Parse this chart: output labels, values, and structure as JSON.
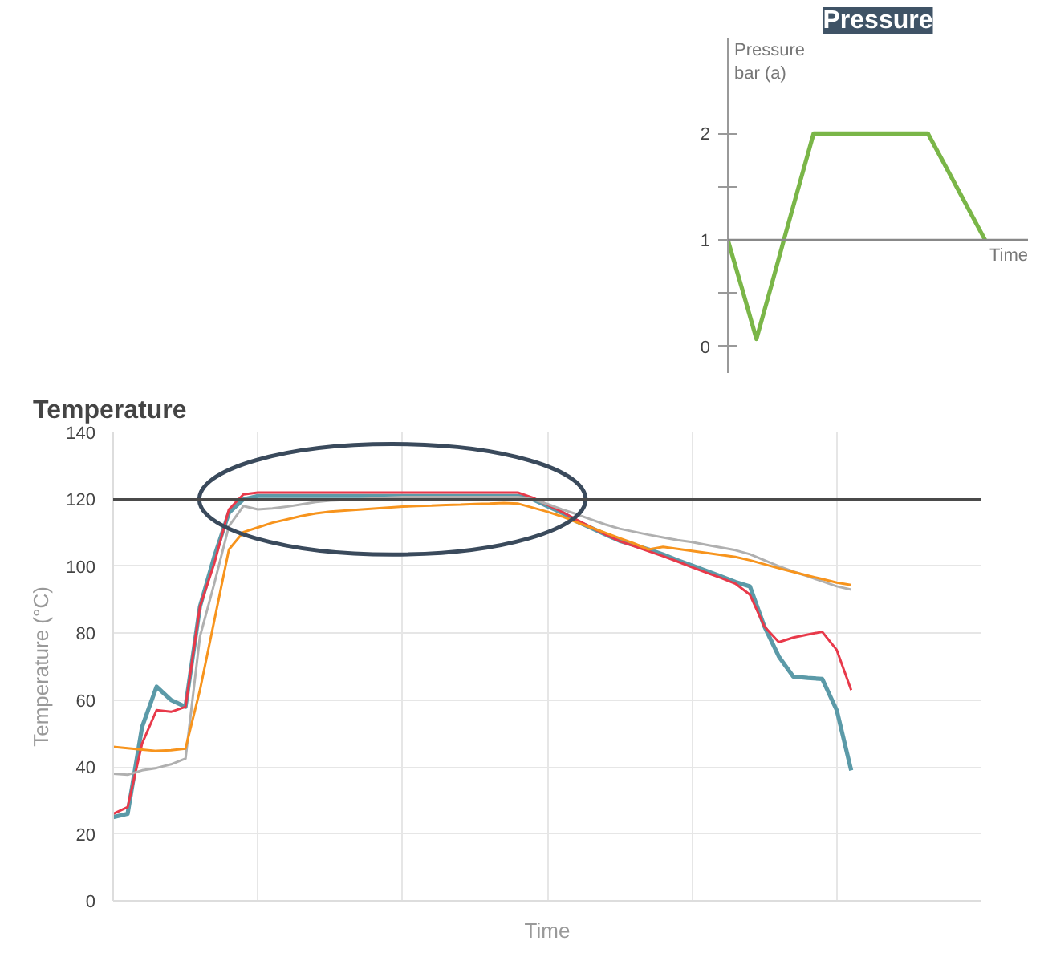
{
  "chart_data": [
    {
      "type": "line",
      "title": "Pressure",
      "xlabel": "Time",
      "ylabel": "Pressure\nbar (a)",
      "categories": [
        null,
        null,
        null,
        null,
        null,
        null,
        null,
        null,
        null,
        null,
        null,
        null,
        null,
        null,
        null,
        null,
        null,
        null,
        null
      ],
      "ylim": [
        -0.25,
        2.9
      ],
      "yticks": [
        0,
        {
          "value": 0.5,
          "label": null
        },
        1,
        {
          "value": 1.5,
          "label": null
        },
        2
      ],
      "grid": false,
      "ref_lines": [
        {
          "axis": "y",
          "value": 1,
          "color": "#888888"
        }
      ],
      "series": [
        {
          "color": "#7ab648",
          "values": [
            1,
            0.54,
            0.07,
            0.55,
            1.04,
            1.52,
            2,
            2,
            2,
            2,
            2,
            2,
            2,
            2,
            2,
            1.75,
            1.5,
            1.25,
            1
          ]
        }
      ]
    },
    {
      "type": "line",
      "title": "Temperature",
      "xlabel": "Time",
      "ylabel": "Temperature (°C)",
      "categories": [
        null,
        null,
        null,
        null,
        null,
        null,
        null,
        null,
        null,
        null,
        null,
        null,
        null,
        null,
        null,
        null,
        null,
        null,
        null,
        null,
        null,
        null,
        null,
        null,
        null,
        null,
        null,
        null,
        null,
        null,
        null,
        null,
        null,
        null,
        null,
        null,
        null,
        null,
        null,
        null,
        null,
        null,
        null,
        null,
        null,
        null,
        null,
        null,
        null,
        null,
        null,
        null,
        null,
        null,
        null,
        null,
        null,
        null,
        null,
        null,
        null
      ],
      "ylim": [
        0,
        140
      ],
      "yticks": [
        0,
        20,
        40,
        60,
        80,
        100,
        120,
        140
      ],
      "grid": true,
      "ref_lines": [
        {
          "axis": "y",
          "value": 120,
          "color": "#4a4a4a"
        }
      ],
      "series": [
        {
          "color": "#5b9aa8",
          "values": [
            25,
            26,
            52,
            64,
            60,
            58,
            88,
            103,
            116,
            120,
            121,
            121,
            121,
            121,
            121,
            121,
            121,
            121,
            121,
            121,
            121,
            121,
            121,
            121,
            121,
            121,
            121,
            121,
            121,
            120,
            118,
            116,
            113.5,
            111.5,
            109.5,
            107.6,
            106.3,
            105,
            103.5,
            101.8,
            100.2,
            98.6,
            97,
            95.3,
            94,
            82,
            73,
            67,
            66.6,
            66.3,
            57,
            39,
            null,
            null,
            null,
            null,
            null,
            null,
            null,
            null,
            null
          ]
        },
        {
          "color": "#e8394a",
          "values": [
            26,
            28,
            47,
            57,
            56.5,
            58,
            88,
            101,
            117,
            121.5,
            122,
            122,
            122,
            122,
            122,
            122,
            122,
            122,
            122,
            122,
            122,
            122,
            122,
            122,
            122,
            122,
            122,
            122,
            122,
            120.5,
            118.4,
            116.3,
            114,
            111.7,
            109.5,
            107.5,
            106,
            104.5,
            103,
            101.4,
            99.7,
            98.1,
            96.5,
            94.8,
            91.5,
            82,
            77.3,
            78.7,
            79.6,
            80.4,
            75,
            63,
            null,
            null,
            null,
            null,
            null,
            null,
            null,
            null,
            null
          ]
        },
        {
          "color": "#b0b0b0",
          "values": [
            38,
            37.7,
            39,
            39.7,
            40.8,
            42.5,
            79,
            95,
            112,
            118,
            117,
            117.3,
            117.8,
            118.5,
            119.2,
            119.6,
            119.8,
            120,
            120.3,
            120.5,
            120.7,
            120.7,
            120.7,
            120.7,
            120.7,
            120.7,
            120.7,
            120.7,
            120.7,
            120,
            118.6,
            117,
            115.6,
            114,
            112.5,
            111.2,
            110.3,
            109.4,
            108.6,
            107.8,
            107.2,
            106.4,
            105.6,
            104.8,
            103.6,
            101.8,
            100,
            98.4,
            97,
            95.5,
            94,
            93,
            null,
            null,
            null,
            null,
            null,
            null,
            null,
            null,
            null
          ]
        },
        {
          "color": "#f7941d",
          "values": [
            46,
            45.6,
            45.2,
            44.8,
            45,
            45.5,
            63,
            84,
            105,
            110.2,
            111.6,
            113,
            114,
            115,
            115.8,
            116.3,
            116.6,
            116.9,
            117.2,
            117.5,
            117.8,
            118,
            118.1,
            118.3,
            118.4,
            118.6,
            118.7,
            118.9,
            118.7,
            117.5,
            116.3,
            114.9,
            113.2,
            111.6,
            110,
            108.4,
            106.8,
            105,
            105.8,
            105.2,
            104.6,
            104,
            103.4,
            102.8,
            101.8,
            100.6,
            99.4,
            98.3,
            97.2,
            96.2,
            95.1,
            94.4,
            null,
            null,
            null,
            null,
            null,
            null,
            null,
            null,
            null
          ]
        }
      ]
    }
  ]
}
